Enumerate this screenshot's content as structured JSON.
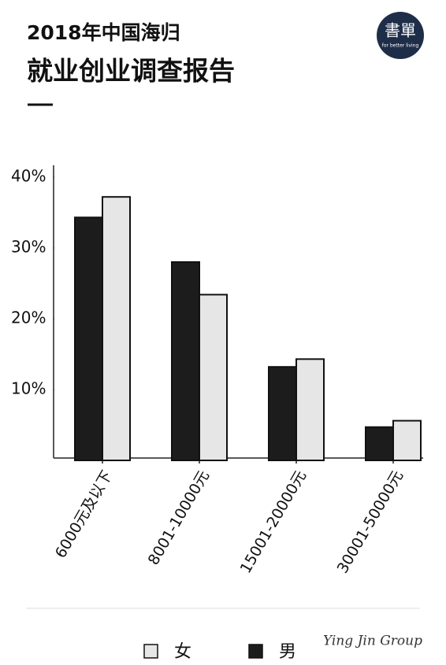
{
  "chart_data": {
    "type": "bar",
    "title": "2018年中国海归",
    "subtitle": "就业创业调查报告",
    "categories": [
      "6000元及以下",
      "8001-10000元",
      "15001-20000元",
      "30001-50000元"
    ],
    "series": [
      {
        "name": "男",
        "color": "#1c1c1c",
        "values": [
          34.3,
          28,
          13.2,
          4.7
        ]
      },
      {
        "name": "女",
        "color": "#e6e6e6",
        "values": [
          37.2,
          23.4,
          14.3,
          5.6
        ]
      }
    ],
    "ylim": [
      0,
      40
    ],
    "yticks": [
      {
        "value": 10,
        "label": "10%"
      },
      {
        "value": 20,
        "label": "20%"
      },
      {
        "value": 30,
        "label": "30%"
      },
      {
        "value": 40,
        "label": "40%"
      }
    ],
    "grid": false
  },
  "logo": {
    "text": "書單",
    "tagline": "for better living"
  },
  "footer": "Ying Jin Group"
}
